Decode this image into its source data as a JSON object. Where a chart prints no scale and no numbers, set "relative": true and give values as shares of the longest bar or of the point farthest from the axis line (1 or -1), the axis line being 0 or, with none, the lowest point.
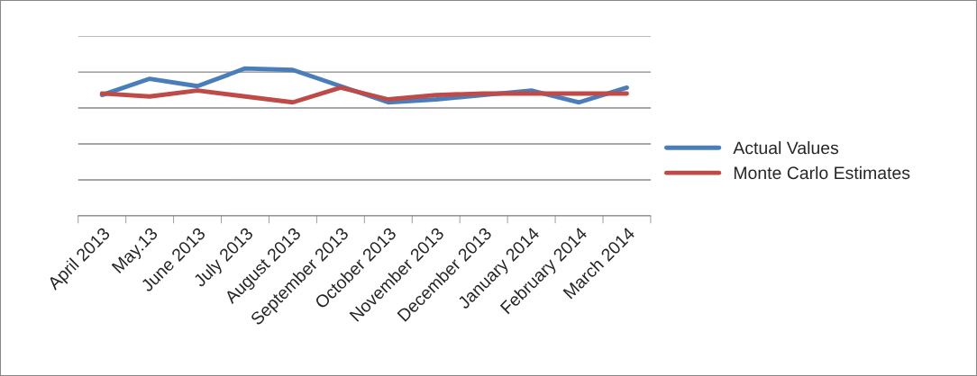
{
  "chart_data": {
    "type": "line",
    "relative": true,
    "categories": [
      "April 2013",
      "May.13",
      "June 2013",
      "July 2013",
      "August 2013",
      "September 2013",
      "October 2013",
      "November 2013",
      "December 2013",
      "January 2014",
      "February 2014",
      "March 2014"
    ],
    "series": [
      {
        "name": "Actual Values",
        "color": "#4a7ebb",
        "values": [
          0.82,
          0.93,
          0.88,
          1.0,
          0.99,
          0.88,
          0.77,
          0.79,
          0.82,
          0.85,
          0.77,
          0.87
        ]
      },
      {
        "name": "Monte Carlo Estimates",
        "color": "#be4b48",
        "values": [
          0.83,
          0.81,
          0.85,
          0.81,
          0.77,
          0.87,
          0.79,
          0.82,
          0.83,
          0.83,
          0.83,
          0.83
        ]
      }
    ],
    "grid": "y",
    "legend": "right",
    "marker": "none",
    "line_style": "solid"
  }
}
